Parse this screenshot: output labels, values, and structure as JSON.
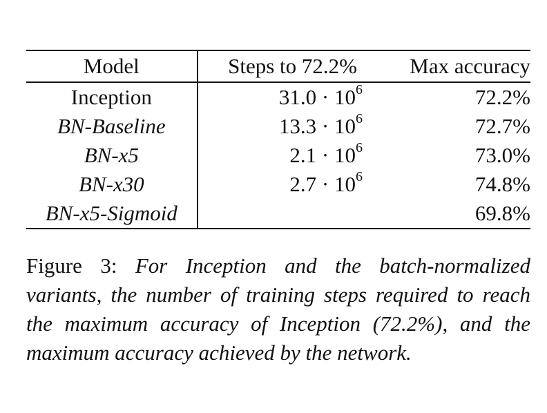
{
  "table": {
    "headers": [
      "Model",
      "Steps to 72.2%",
      "Max accuracy"
    ],
    "rows": [
      {
        "model": "Inception",
        "italic": false,
        "steps_mantissa": "31.0",
        "steps_exp": "6",
        "max_accuracy": "72.2%"
      },
      {
        "model": "BN-Baseline",
        "italic": true,
        "steps_mantissa": "13.3",
        "steps_exp": "6",
        "max_accuracy": "72.7%"
      },
      {
        "model": "BN-x5",
        "italic": true,
        "steps_mantissa": "2.1",
        "steps_exp": "6",
        "max_accuracy": "73.0%"
      },
      {
        "model": "BN-x30",
        "italic": true,
        "steps_mantissa": "2.7",
        "steps_exp": "6",
        "max_accuracy": "74.8%"
      },
      {
        "model": "BN-x5-Sigmoid",
        "italic": true,
        "steps_mantissa": "",
        "steps_exp": "",
        "max_accuracy": "69.8%"
      }
    ]
  },
  "caption": {
    "label": "Figure 3:",
    "text": "For Inception and the batch-normalized variants, the number of training steps required to reach the maximum accuracy of Inception (72.2%), and the maximum accuracy achieved by the network."
  }
}
